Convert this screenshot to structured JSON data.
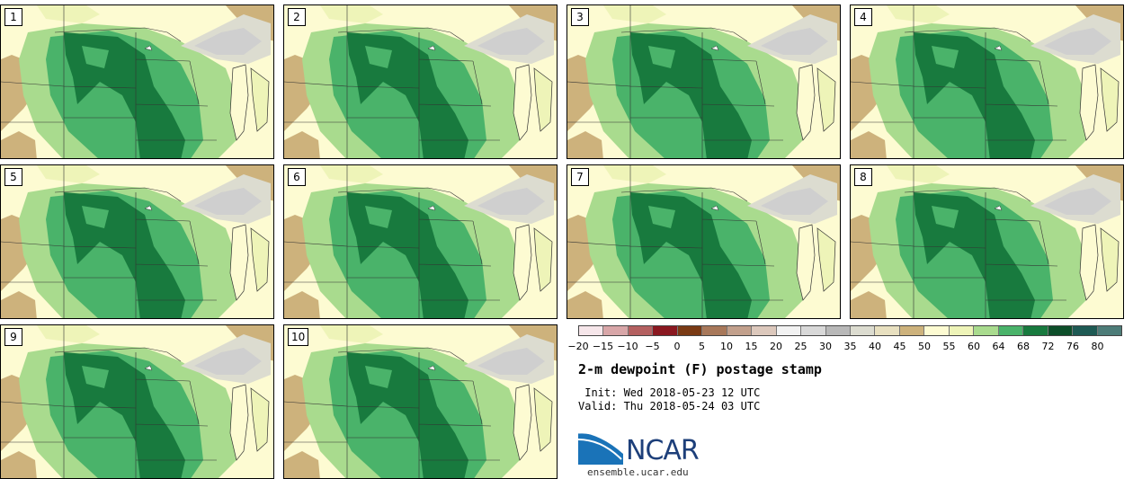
{
  "panels": [
    {
      "label": "1"
    },
    {
      "label": "2"
    },
    {
      "label": "3"
    },
    {
      "label": "4"
    },
    {
      "label": "5"
    },
    {
      "label": "6"
    },
    {
      "label": "7"
    },
    {
      "label": "8"
    },
    {
      "label": "9"
    },
    {
      "label": "10"
    }
  ],
  "colorbar": {
    "colors": [
      "#f6e6ea",
      "#d8a6a8",
      "#b46060",
      "#8a1820",
      "#7a3a14",
      "#a8785a",
      "#c2a08c",
      "#dcc8bc",
      "#f2f2f2",
      "#d8d8d8",
      "#b8b8b8",
      "#dcdcd0",
      "#e8e0c0",
      "#cdb27c",
      "#fdfbd2",
      "#eef4b8",
      "#a9db8e",
      "#4ab36a",
      "#187a3e",
      "#0d4f2a",
      "#1e5a54",
      "#4d7c78"
    ],
    "tick_labels": [
      "−20",
      "−15",
      "−10",
      "−5",
      "0",
      "5",
      "10",
      "15",
      "20",
      "25",
      "30",
      "35",
      "40",
      "45",
      "50",
      "55",
      "60",
      "64",
      "68",
      "72",
      "76",
      "80"
    ]
  },
  "title": "2-m dewpoint (F) postage stamp",
  "init": " Init: Wed 2018-05-23 12 UTC",
  "valid": "Valid: Thu 2018-05-24 03 UTC",
  "logo_text": "NCAR",
  "url": "ensemble.ucar.edu"
}
